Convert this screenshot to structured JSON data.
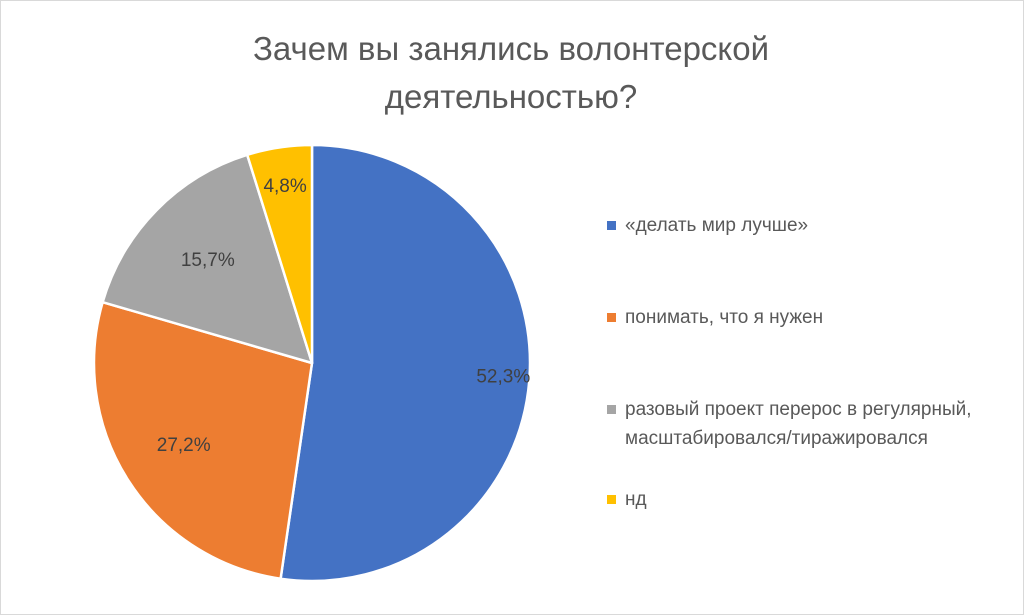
{
  "chart_data": {
    "type": "pie",
    "title": "Зачем вы занялись волонтерской деятельностью?",
    "slices": [
      {
        "label": "«делать мир лучше»",
        "value": 52.3,
        "display": "52,3%",
        "color": "#4472C4"
      },
      {
        "label": "понимать, что я нужен",
        "value": 27.2,
        "display": "27,2%",
        "color": "#ED7D31"
      },
      {
        "label": "разовый проект перерос в регулярный, масштабировался/тиражировался",
        "value": 15.7,
        "display": "15,7%",
        "color": "#A5A5A5"
      },
      {
        "label": "нд",
        "value": 4.8,
        "display": "4,8%",
        "color": "#FFC000"
      }
    ],
    "legend_position": "right",
    "label_color": "#404040"
  }
}
